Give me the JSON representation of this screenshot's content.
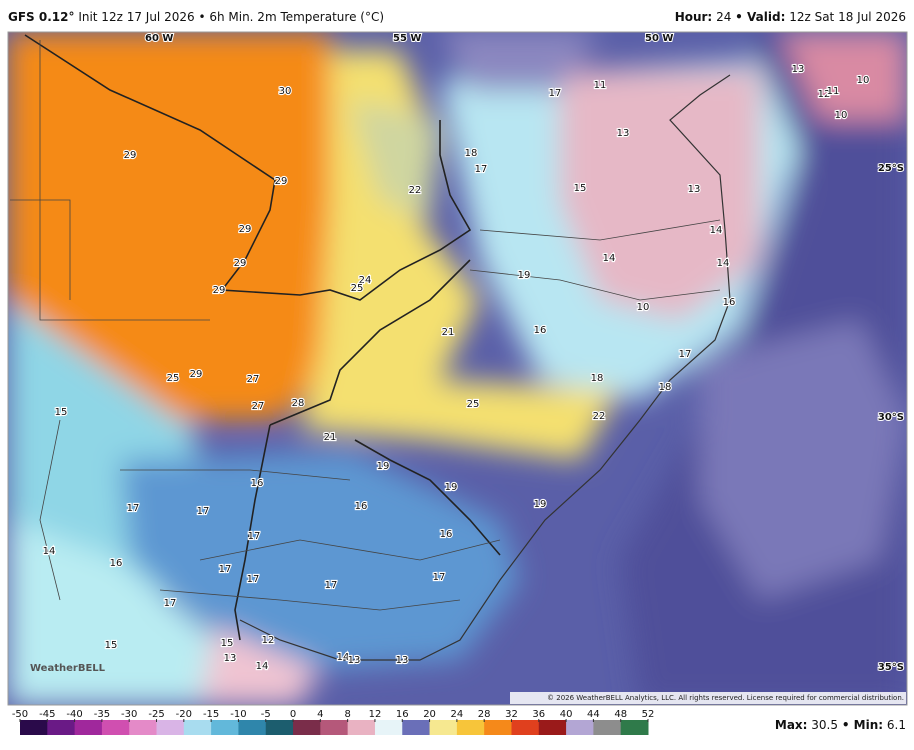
{
  "header": {
    "model": "GFS 0.12°",
    "init": "Init 12z 17 Jul 2026",
    "product": "• 6h Min. 2m Temperature (°C)",
    "hour_label": "Hour:",
    "hour": 24,
    "valid_label": "• Valid:",
    "valid": "12z Sat 18 Jul 2026"
  },
  "map": {
    "longitudes": [
      "60 W",
      "55 W",
      "50 W"
    ],
    "latitudes": [
      "25°S",
      "30°S",
      "35°S"
    ],
    "labels": [
      30,
      29,
      29,
      29,
      29,
      29,
      22,
      24,
      25,
      25,
      29,
      27,
      27,
      28,
      21,
      25,
      21,
      19,
      19,
      19,
      22,
      16,
      16,
      16,
      17,
      17,
      17,
      17,
      17,
      17,
      17,
      17,
      15,
      14,
      16,
      15,
      15,
      13,
      12,
      14,
      14,
      13,
      13,
      17,
      11,
      13,
      18,
      17,
      15,
      13,
      19,
      16,
      14,
      10,
      18,
      17,
      18,
      13,
      10,
      12,
      11,
      10,
      14,
      14,
      16
    ],
    "logo": "WeatherBELL",
    "copyright": "© 2026 WeatherBELL Analytics, LLC. All rights reserved. License required for commercial distribution."
  },
  "colorbar": {
    "ticks": [
      -50,
      -45,
      -40,
      -35,
      -30,
      -25,
      -20,
      -15,
      -10,
      -5,
      0,
      4,
      8,
      12,
      16,
      20,
      24,
      28,
      32,
      36,
      40,
      44,
      48,
      52
    ]
  },
  "footer": {
    "max_label": "Max:",
    "max": 30.5,
    "min_label": "• Min:",
    "min": 6.1
  }
}
